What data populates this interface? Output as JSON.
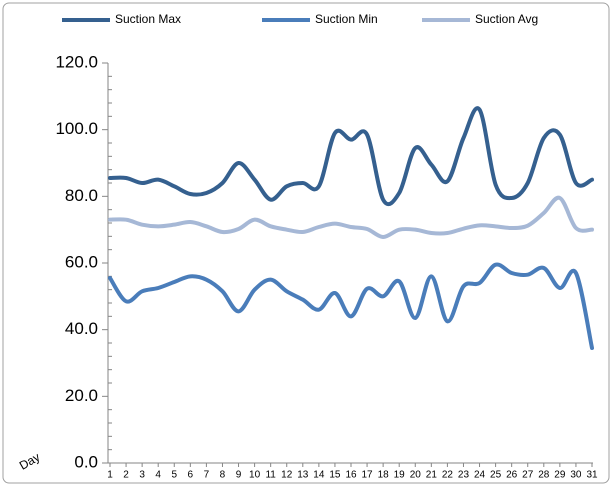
{
  "chart_data": {
    "type": "line",
    "x_label": "Day",
    "categories": [
      "1",
      "2",
      "3",
      "4",
      "5",
      "6",
      "7",
      "8",
      "9",
      "10",
      "11",
      "12",
      "13",
      "14",
      "15",
      "16",
      "17",
      "18",
      "19",
      "20",
      "21",
      "22",
      "23",
      "24",
      "25",
      "26",
      "27",
      "28",
      "29",
      "30",
      "31"
    ],
    "series": [
      {
        "name": "Suction Max",
        "color": "#35608f",
        "values": [
          85.5,
          85.5,
          84,
          85,
          83,
          80.7,
          81,
          84,
          90,
          85,
          79,
          83,
          84,
          83,
          99,
          97,
          98.5,
          79,
          81,
          94.5,
          89.5,
          84.5,
          97.5,
          106,
          83.5,
          79.5,
          84,
          97.5,
          98.5,
          84,
          85
        ]
      },
      {
        "name": "Suction Min",
        "color": "#4a7dba",
        "values": [
          55.5,
          48.5,
          51.5,
          52.5,
          54.3,
          56,
          55,
          51.5,
          45.5,
          52,
          55,
          51.5,
          49,
          46,
          51,
          44,
          52.3,
          50,
          54.5,
          43.5,
          56,
          42.5,
          53,
          54,
          59.5,
          57,
          56.5,
          58.5,
          52.5,
          57,
          34.5
        ]
      },
      {
        "name": "Suction Avg",
        "color": "#a6b8d6",
        "values": [
          73,
          73,
          71.5,
          71,
          71.5,
          72.3,
          71,
          69.3,
          70.2,
          73,
          71,
          70,
          69.3,
          70.8,
          71.8,
          70.8,
          70.2,
          67.8,
          70,
          70,
          69,
          69,
          70.3,
          71.3,
          71,
          70.5,
          71.2,
          75,
          79.5,
          70.5,
          70
        ]
      }
    ],
    "ylim": [
      0,
      120
    ],
    "yticks": [
      {
        "value": 0,
        "label": "0.0"
      },
      {
        "value": 20,
        "label": "20.0"
      },
      {
        "value": 40,
        "label": "40.0"
      },
      {
        "value": 60,
        "label": "60.0"
      },
      {
        "value": 80,
        "label": "80.0"
      },
      {
        "value": 100,
        "label": "100.0"
      },
      {
        "value": 120,
        "label": "120.0"
      }
    ],
    "smooth": true,
    "legend": "top"
  }
}
